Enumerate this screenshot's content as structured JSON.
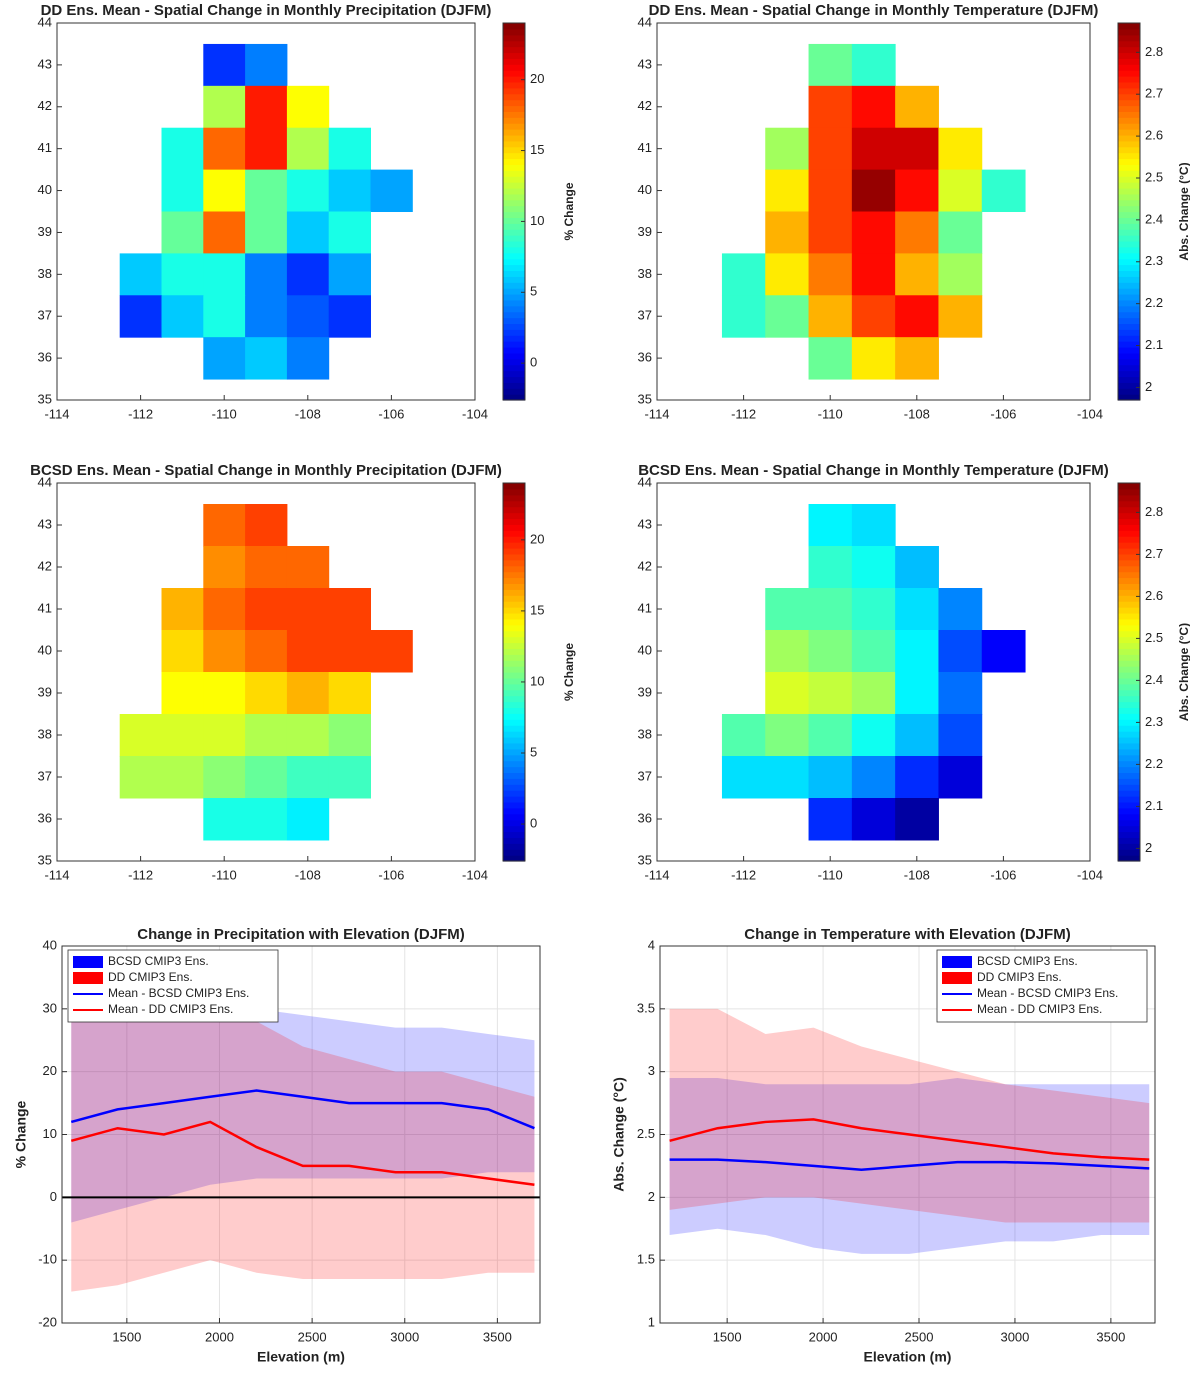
{
  "chart_data": [
    {
      "type": "heatmap",
      "title": "DD Ens. Mean - Spatial Change in Monthly Precipitation (DJFM)",
      "colorbar_label": "% Change",
      "x": [
        -112,
        -111,
        -110,
        -109,
        -108,
        -107,
        -106
      ],
      "y": [
        43,
        42,
        41,
        40,
        39,
        38,
        37,
        36
      ],
      "z": [
        [
          null,
          null,
          2,
          4,
          null,
          null,
          null
        ],
        [
          null,
          null,
          12,
          20,
          14,
          null,
          null
        ],
        [
          null,
          8,
          18,
          20,
          12,
          8,
          null
        ],
        [
          null,
          8,
          14,
          10,
          8,
          6,
          5
        ],
        [
          null,
          10,
          18,
          10,
          6,
          8,
          null
        ],
        [
          6,
          8,
          8,
          4,
          2,
          5,
          null
        ],
        [
          2,
          6,
          8,
          4,
          3,
          2,
          null
        ],
        [
          null,
          null,
          5,
          6,
          4,
          null,
          null
        ]
      ],
      "xlim": [
        -114,
        -104
      ],
      "ylim": [
        35,
        44
      ],
      "xticks": [
        -114,
        -112,
        -110,
        -108,
        -106,
        -104
      ],
      "yticks": [
        35,
        36,
        37,
        38,
        39,
        40,
        41,
        42,
        43,
        44
      ],
      "clim": [
        -2.6,
        24
      ],
      "cticks": [
        0,
        5,
        10,
        15,
        20
      ]
    },
    {
      "type": "heatmap",
      "title": "DD Ens. Mean - Spatial Change in Monthly Temperature (DJFM)",
      "colorbar_label": "Abs. Change (°C)",
      "x": [
        -112,
        -111,
        -110,
        -109,
        -108,
        -107,
        -106
      ],
      "y": [
        43,
        42,
        41,
        40,
        39,
        38,
        37,
        36
      ],
      "z": [
        [
          null,
          null,
          2.4,
          2.35,
          null,
          null,
          null
        ],
        [
          null,
          null,
          2.7,
          2.75,
          2.6,
          null,
          null
        ],
        [
          null,
          2.45,
          2.7,
          2.8,
          2.8,
          2.55,
          null
        ],
        [
          null,
          2.55,
          2.7,
          2.85,
          2.75,
          2.5,
          2.35
        ],
        [
          null,
          2.6,
          2.7,
          2.75,
          2.65,
          2.4,
          null
        ],
        [
          2.35,
          2.55,
          2.65,
          2.75,
          2.6,
          2.45,
          null
        ],
        [
          2.35,
          2.4,
          2.6,
          2.7,
          2.75,
          2.6,
          null
        ],
        [
          null,
          null,
          2.4,
          2.55,
          2.6,
          null,
          null
        ]
      ],
      "xlim": [
        -114,
        -104
      ],
      "ylim": [
        35,
        44
      ],
      "xticks": [
        -114,
        -112,
        -110,
        -108,
        -106,
        -104
      ],
      "yticks": [
        35,
        36,
        37,
        38,
        39,
        40,
        41,
        42,
        43,
        44
      ],
      "clim": [
        1.97,
        2.87
      ],
      "cticks": [
        2,
        2.1,
        2.2,
        2.3,
        2.4,
        2.5,
        2.6,
        2.7,
        2.8
      ]
    },
    {
      "type": "heatmap",
      "title": "BCSD Ens. Mean - Spatial Change in Monthly Precipitation (DJFM)",
      "colorbar_label": "% Change",
      "x": [
        -112,
        -111,
        -110,
        -109,
        -108,
        -107,
        -106
      ],
      "y": [
        43,
        42,
        41,
        40,
        39,
        38,
        37,
        36
      ],
      "z": [
        [
          null,
          null,
          18,
          19,
          null,
          null,
          null
        ],
        [
          null,
          null,
          17,
          18,
          18,
          null,
          null
        ],
        [
          null,
          16,
          18,
          19,
          19,
          19,
          null
        ],
        [
          null,
          15,
          17,
          18,
          19,
          19,
          19
        ],
        [
          null,
          14,
          14,
          15,
          16,
          15,
          null
        ],
        [
          13,
          13,
          13,
          12,
          12,
          11,
          null
        ],
        [
          12,
          12,
          11,
          10,
          9,
          9,
          null
        ],
        [
          null,
          null,
          8,
          8,
          7,
          null,
          null
        ]
      ],
      "xlim": [
        -114,
        -104
      ],
      "ylim": [
        35,
        44
      ],
      "xticks": [
        -114,
        -112,
        -110,
        -108,
        -106,
        -104
      ],
      "yticks": [
        35,
        36,
        37,
        38,
        39,
        40,
        41,
        42,
        43,
        44
      ],
      "clim": [
        -2.6,
        24
      ],
      "cticks": [
        0,
        5,
        10,
        15,
        20
      ]
    },
    {
      "type": "heatmap",
      "title": "BCSD Ens. Mean - Spatial Change in Monthly Temperature (DJFM)",
      "colorbar_label": "Abs. Change (°C)",
      "x": [
        -112,
        -111,
        -110,
        -109,
        -108,
        -107,
        -106
      ],
      "y": [
        43,
        42,
        41,
        40,
        39,
        38,
        37,
        36
      ],
      "z": [
        [
          null,
          null,
          2.3,
          2.28,
          null,
          null,
          null
        ],
        [
          null,
          null,
          2.35,
          2.32,
          2.25,
          null,
          null
        ],
        [
          null,
          2.38,
          2.38,
          2.35,
          2.28,
          2.2,
          null
        ],
        [
          null,
          2.45,
          2.42,
          2.38,
          2.3,
          2.15,
          2.08
        ],
        [
          null,
          2.5,
          2.48,
          2.45,
          2.3,
          2.18,
          null
        ],
        [
          2.38,
          2.42,
          2.38,
          2.32,
          2.25,
          2.15,
          null
        ],
        [
          2.28,
          2.28,
          2.25,
          2.2,
          2.12,
          2.05,
          null
        ],
        [
          null,
          null,
          2.12,
          2.05,
          2.0,
          null,
          null
        ]
      ],
      "xlim": [
        -114,
        -104
      ],
      "ylim": [
        35,
        44
      ],
      "xticks": [
        -114,
        -112,
        -110,
        -108,
        -106,
        -104
      ],
      "yticks": [
        35,
        36,
        37,
        38,
        39,
        40,
        41,
        42,
        43,
        44
      ],
      "clim": [
        1.97,
        2.87
      ],
      "cticks": [
        2,
        2.1,
        2.2,
        2.3,
        2.4,
        2.5,
        2.6,
        2.7,
        2.8
      ]
    },
    {
      "type": "line",
      "title": "Change in Precipitation with Elevation (DJFM)",
      "xlabel": "Elevation (m)",
      "ylabel": "% Change",
      "x": [
        1200,
        1450,
        1700,
        1950,
        2200,
        2450,
        2700,
        2950,
        3200,
        3450,
        3700
      ],
      "series": [
        {
          "name": "BCSD CMIP3 Ens.",
          "color": "#0000ff",
          "alpha": 0.2,
          "lower": [
            -4,
            -2,
            0,
            2,
            3,
            3,
            3,
            3,
            3,
            4,
            4
          ],
          "upper": [
            30,
            30,
            28,
            30,
            30,
            29,
            28,
            27,
            27,
            26,
            25
          ]
        },
        {
          "name": "DD CMIP3 Ens.",
          "color": "#ff0000",
          "alpha": 0.2,
          "lower": [
            -15,
            -14,
            -12,
            -10,
            -12,
            -13,
            -13,
            -13,
            -13,
            -12,
            -12
          ],
          "upper": [
            35,
            30,
            30,
            32,
            28,
            24,
            22,
            20,
            20,
            18,
            16
          ]
        },
        {
          "name": "Mean - BCSD CMIP3 Ens.",
          "color": "#0000ff",
          "values": [
            12,
            14,
            15,
            16,
            17,
            16,
            15,
            15,
            15,
            14,
            11
          ]
        },
        {
          "name": "Mean - DD CMIP3 Ens.",
          "color": "#ff0000",
          "values": [
            9,
            11,
            10,
            12,
            8,
            5,
            5,
            4,
            4,
            3,
            2
          ]
        }
      ],
      "xlim": [
        1150,
        3730
      ],
      "ylim": [
        -20,
        40
      ],
      "xticks": [
        1500,
        2000,
        2500,
        3000,
        3500
      ],
      "yticks": [
        -20,
        -10,
        0,
        10,
        20,
        30,
        40
      ],
      "hline": 0,
      "grid": true,
      "legend_loc": "upper left"
    },
    {
      "type": "line",
      "title": "Change in Temperature with Elevation (DJFM)",
      "xlabel": "Elevation (m)",
      "ylabel": "Abs. Change (°C)",
      "x": [
        1200,
        1450,
        1700,
        1950,
        2200,
        2450,
        2700,
        2950,
        3200,
        3450,
        3700
      ],
      "series": [
        {
          "name": "BCSD CMIP3 Ens.",
          "color": "#0000ff",
          "alpha": 0.2,
          "lower": [
            1.7,
            1.75,
            1.7,
            1.6,
            1.55,
            1.55,
            1.6,
            1.65,
            1.65,
            1.7,
            1.7
          ],
          "upper": [
            2.95,
            2.95,
            2.9,
            2.9,
            2.9,
            2.9,
            2.95,
            2.9,
            2.9,
            2.9,
            2.9
          ]
        },
        {
          "name": "DD CMIP3 Ens.",
          "color": "#ff0000",
          "alpha": 0.2,
          "lower": [
            1.9,
            1.95,
            2.0,
            2.0,
            1.95,
            1.9,
            1.85,
            1.8,
            1.8,
            1.8,
            1.8
          ],
          "upper": [
            3.5,
            3.5,
            3.3,
            3.35,
            3.2,
            3.1,
            3.0,
            2.9,
            2.85,
            2.8,
            2.75
          ]
        },
        {
          "name": "Mean - BCSD CMIP3 Ens.",
          "color": "#0000ff",
          "values": [
            2.3,
            2.3,
            2.28,
            2.25,
            2.22,
            2.25,
            2.28,
            2.28,
            2.27,
            2.25,
            2.23
          ]
        },
        {
          "name": "Mean - DD CMIP3 Ens.",
          "color": "#ff0000",
          "values": [
            2.45,
            2.55,
            2.6,
            2.62,
            2.55,
            2.5,
            2.45,
            2.4,
            2.35,
            2.32,
            2.3
          ]
        }
      ],
      "xlim": [
        1150,
        3730
      ],
      "ylim": [
        1,
        4
      ],
      "xticks": [
        1500,
        2000,
        2500,
        3000,
        3500
      ],
      "yticks": [
        1,
        1.5,
        2,
        2.5,
        3,
        3.5,
        4
      ],
      "grid": true,
      "legend_loc": "upper right"
    }
  ]
}
